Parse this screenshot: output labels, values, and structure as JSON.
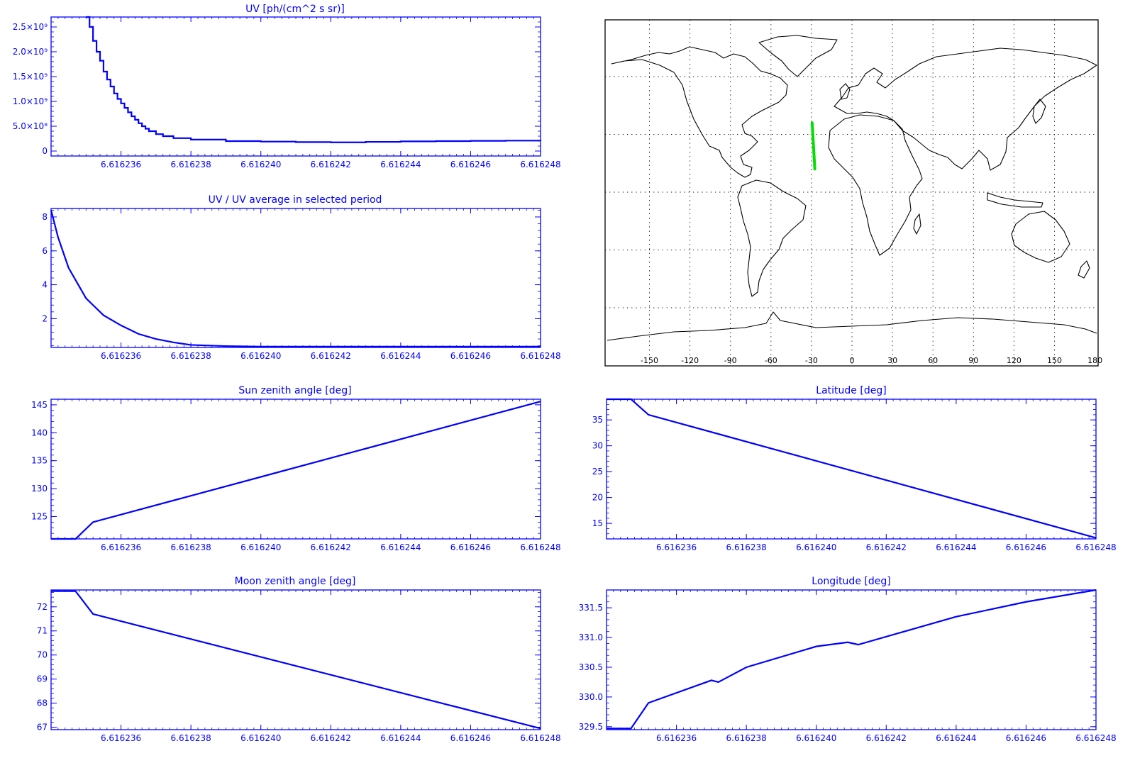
{
  "colors": {
    "plot": "#0000ff",
    "background": "#ffffff",
    "map_lines": "#000000",
    "track": "#00e000"
  },
  "chart_data": [
    {
      "id": "uv",
      "type": "line",
      "step": true,
      "title": "UV [ph/(cm^2 s sr)]",
      "xlabel": "",
      "ylabel": "",
      "xlim": [
        6.616234,
        6.616248
      ],
      "ylim": [
        -100000000,
        2700000000
      ],
      "xticks": [
        "6.616236",
        "6.616238",
        "6.616240",
        "6.616242",
        "6.616244",
        "6.616246",
        "6.616248"
      ],
      "yticks": [
        "0",
        "5.0×10⁸",
        "1.0×10⁹",
        "1.5×10⁹",
        "2.0×10⁹",
        "2.5×10⁹"
      ],
      "yticks_values": [
        0,
        500000000,
        1000000000,
        1500000000,
        2000000000,
        2500000000
      ],
      "series": [
        {
          "x": [
            6.616235,
            6.6162351,
            6.6162352,
            6.6162353,
            6.6162354,
            6.6162355,
            6.6162356,
            6.6162357,
            6.6162358,
            6.6162359,
            6.616236,
            6.6162361,
            6.6162362,
            6.6162363,
            6.6162364,
            6.6162365,
            6.6162366,
            6.6162367,
            6.6162368,
            6.616237,
            6.6162372,
            6.6162375,
            6.616238,
            6.616239,
            6.61624,
            6.616241,
            6.616242,
            6.616243,
            6.616244,
            6.616245,
            6.616246,
            6.616247,
            6.616248
          ],
          "y": [
            2700000000,
            2500000000,
            2220000000,
            2000000000,
            1820000000,
            1600000000,
            1440000000,
            1300000000,
            1160000000,
            1050000000,
            960000000,
            870000000,
            780000000,
            700000000,
            630000000,
            560000000,
            500000000,
            450000000,
            400000000,
            340000000,
            300000000,
            260000000,
            230000000,
            200000000,
            190000000,
            180000000,
            175000000,
            185000000,
            195000000,
            200000000,
            205000000,
            210000000,
            205000000
          ]
        }
      ]
    },
    {
      "id": "uv_ratio",
      "type": "line",
      "title": "UV / UV average in selected period",
      "xlabel": "",
      "ylabel": "",
      "xlim": [
        6.616234,
        6.616248
      ],
      "ylim": [
        0.3,
        8.5
      ],
      "xticks": [
        "6.616236",
        "6.616238",
        "6.616240",
        "6.616242",
        "6.616244",
        "6.616246",
        "6.616248"
      ],
      "yticks": [
        "2",
        "4",
        "6",
        "8"
      ],
      "yticks_values": [
        2,
        4,
        6,
        8
      ],
      "series": [
        {
          "x": [
            6.616234,
            6.6162342,
            6.6162345,
            6.616235,
            6.6162355,
            6.616236,
            6.6162365,
            6.616237,
            6.6162375,
            6.616238,
            6.616239,
            6.61624,
            6.616241,
            6.616242,
            6.616244,
            6.616246,
            6.616248
          ],
          "y": [
            8.4,
            6.8,
            5.0,
            3.2,
            2.2,
            1.6,
            1.1,
            0.8,
            0.6,
            0.45,
            0.38,
            0.35,
            0.35,
            0.35,
            0.35,
            0.35,
            0.35
          ]
        }
      ]
    },
    {
      "id": "sun_zenith",
      "type": "line",
      "title": "Sun zenith angle [deg]",
      "xlabel": "",
      "ylabel": "",
      "xlim": [
        6.616234,
        6.616248
      ],
      "ylim": [
        121,
        146
      ],
      "xticks": [
        "6.616236",
        "6.616238",
        "6.616240",
        "6.616242",
        "6.616244",
        "6.616246",
        "6.616248"
      ],
      "yticks": [
        "125",
        "130",
        "135",
        "140",
        "145"
      ],
      "yticks_values": [
        125,
        130,
        135,
        140,
        145
      ],
      "series": [
        {
          "x": [
            6.616234,
            6.6162347,
            6.6162352,
            6.616248
          ],
          "y": [
            121,
            121,
            124,
            145.6
          ]
        }
      ]
    },
    {
      "id": "moon_zenith",
      "type": "line",
      "title": "Moon zenith angle [deg]",
      "xlabel": "",
      "ylabel": "",
      "xlim": [
        6.616234,
        6.616248
      ],
      "ylim": [
        66.9,
        72.7
      ],
      "xticks": [
        "6.616236",
        "6.616238",
        "6.616240",
        "6.616242",
        "6.616244",
        "6.616246",
        "6.616248"
      ],
      "yticks": [
        "67",
        "68",
        "69",
        "70",
        "71",
        "72"
      ],
      "yticks_values": [
        67,
        68,
        69,
        70,
        71,
        72
      ],
      "series": [
        {
          "x": [
            6.616234,
            6.6162347,
            6.6162352,
            6.616248
          ],
          "y": [
            72.65,
            72.65,
            71.7,
            66.95
          ]
        }
      ]
    },
    {
      "id": "latitude",
      "type": "line",
      "title": "Latitude [deg]",
      "xlabel": "",
      "ylabel": "",
      "xlim": [
        6.616234,
        6.616248
      ],
      "ylim": [
        12,
        39
      ],
      "xticks": [
        "6.616236",
        "6.616238",
        "6.616240",
        "6.616242",
        "6.616244",
        "6.616246",
        "6.616248"
      ],
      "yticks": [
        "15",
        "20",
        "25",
        "30",
        "35"
      ],
      "yticks_values": [
        15,
        20,
        25,
        30,
        35
      ],
      "series": [
        {
          "x": [
            6.616234,
            6.6162347,
            6.6162352,
            6.616248
          ],
          "y": [
            39,
            39,
            36,
            12.2
          ]
        }
      ]
    },
    {
      "id": "longitude",
      "type": "line",
      "title": "Longitude [deg]",
      "xlabel": "",
      "ylabel": "",
      "xlim": [
        6.616234,
        6.616248
      ],
      "ylim": [
        329.45,
        331.8
      ],
      "xticks": [
        "6.616236",
        "6.616238",
        "6.616240",
        "6.616242",
        "6.616244",
        "6.616246",
        "6.616248"
      ],
      "yticks": [
        "329.5",
        "330.0",
        "330.5",
        "331.0",
        "331.5"
      ],
      "yticks_values": [
        329.5,
        330.0,
        330.5,
        331.0,
        331.5
      ],
      "series": [
        {
          "x": [
            6.616234,
            6.6162347,
            6.6162352,
            6.616237,
            6.6162372,
            6.616238,
            6.61624,
            6.6162409,
            6.6162412,
            6.616244,
            6.616246,
            6.616248
          ],
          "y": [
            329.47,
            329.47,
            329.9,
            330.28,
            330.25,
            330.5,
            330.85,
            330.92,
            330.88,
            331.35,
            331.6,
            331.8
          ]
        }
      ]
    }
  ],
  "map": {
    "lon_ticks": [
      "-150",
      "-120",
      "-90",
      "-60",
      "-30",
      "0",
      "30",
      "60",
      "90",
      "120",
      "150",
      "180"
    ],
    "lon_values": [
      -150,
      -120,
      -90,
      -60,
      -30,
      0,
      30,
      60,
      90,
      120,
      150,
      180
    ],
    "grid_lat_values": [
      60,
      30,
      0,
      -30,
      -60
    ],
    "track": {
      "lon": [
        -29.5,
        -27.5
      ],
      "lat": [
        36,
        12
      ]
    }
  }
}
